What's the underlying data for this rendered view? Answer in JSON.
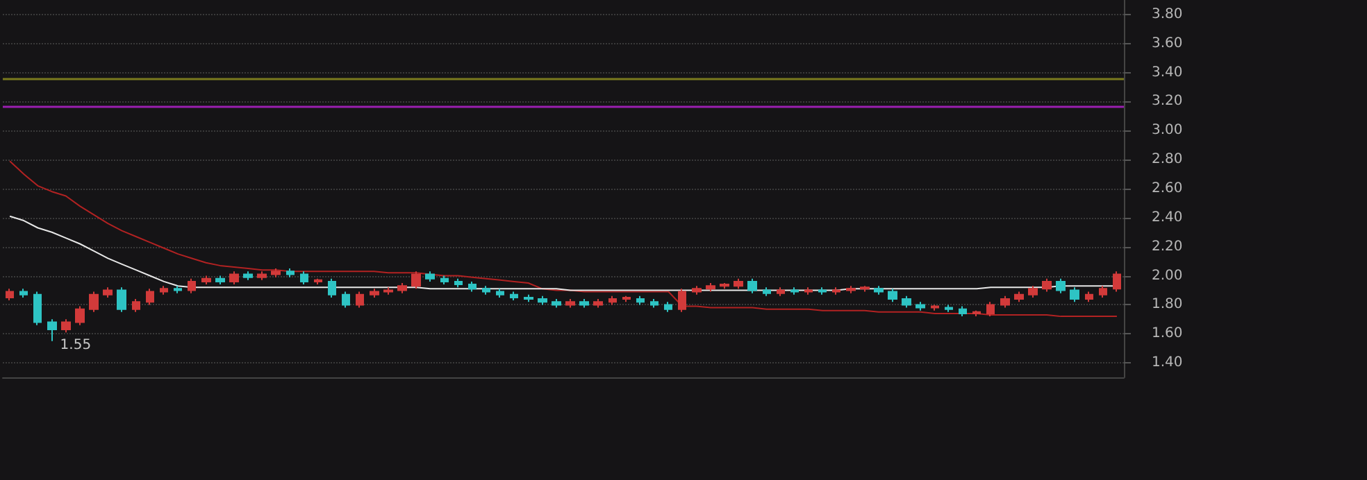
{
  "chart_data": {
    "type": "candlestick",
    "categories": [
      null,
      null,
      null,
      null,
      null,
      null,
      null,
      null,
      null,
      null,
      null,
      null,
      null,
      null,
      null,
      null,
      null,
      null,
      null,
      null,
      null,
      null,
      null,
      null,
      null,
      null,
      null,
      null,
      null,
      null,
      null,
      null,
      null,
      null,
      null,
      null,
      null,
      null,
      null,
      null,
      null,
      null,
      null,
      null,
      null,
      null,
      null,
      null,
      null,
      null,
      null,
      null,
      null,
      null,
      null,
      null,
      null,
      null,
      null,
      null,
      null,
      null,
      null,
      null,
      null,
      null,
      null,
      null,
      null,
      null,
      null,
      null,
      null,
      null,
      null,
      null,
      null,
      null,
      null,
      null
    ],
    "ohlc": [
      [
        1.85,
        1.91,
        1.83,
        1.89
      ],
      [
        1.89,
        1.91,
        1.85,
        1.87
      ],
      [
        1.87,
        1.89,
        1.66,
        1.68
      ],
      [
        1.68,
        1.7,
        1.55,
        1.63
      ],
      [
        1.63,
        1.7,
        1.61,
        1.68
      ],
      [
        1.68,
        1.79,
        1.66,
        1.77
      ],
      [
        1.77,
        1.89,
        1.75,
        1.87
      ],
      [
        1.87,
        1.92,
        1.85,
        1.9
      ],
      [
        1.9,
        1.92,
        1.75,
        1.77
      ],
      [
        1.77,
        1.84,
        1.75,
        1.82
      ],
      [
        1.82,
        1.91,
        1.8,
        1.89
      ],
      [
        1.89,
        1.93,
        1.87,
        1.91
      ],
      [
        1.91,
        1.93,
        1.88,
        1.9
      ],
      [
        1.9,
        1.98,
        1.88,
        1.96
      ],
      [
        1.96,
        2.0,
        1.94,
        1.98
      ],
      [
        1.98,
        2.0,
        1.94,
        1.96
      ],
      [
        1.96,
        2.03,
        1.94,
        2.01
      ],
      [
        2.01,
        2.03,
        1.97,
        1.99
      ],
      [
        1.99,
        2.03,
        1.97,
        2.01
      ],
      [
        2.01,
        2.05,
        1.99,
        2.03
      ],
      [
        2.03,
        2.05,
        1.99,
        2.01
      ],
      [
        2.01,
        2.03,
        1.94,
        1.96
      ],
      [
        1.96,
        1.98,
        1.94,
        1.97
      ],
      [
        1.96,
        1.98,
        1.85,
        1.87
      ],
      [
        1.87,
        1.89,
        1.78,
        1.8
      ],
      [
        1.8,
        1.89,
        1.78,
        1.87
      ],
      [
        1.87,
        1.91,
        1.85,
        1.89
      ],
      [
        1.89,
        1.92,
        1.87,
        1.9
      ],
      [
        1.9,
        1.95,
        1.88,
        1.93
      ],
      [
        1.93,
        2.03,
        1.91,
        2.01
      ],
      [
        2.01,
        2.03,
        1.96,
        1.98
      ],
      [
        1.98,
        2.0,
        1.94,
        1.96
      ],
      [
        1.96,
        1.98,
        1.92,
        1.94
      ],
      [
        1.94,
        1.96,
        1.89,
        1.91
      ],
      [
        1.91,
        1.93,
        1.87,
        1.89
      ],
      [
        1.89,
        1.91,
        1.85,
        1.87
      ],
      [
        1.87,
        1.89,
        1.83,
        1.85
      ],
      [
        1.85,
        1.87,
        1.82,
        1.84
      ],
      [
        1.84,
        1.86,
        1.8,
        1.82
      ],
      [
        1.82,
        1.84,
        1.78,
        1.8
      ],
      [
        1.8,
        1.84,
        1.78,
        1.82
      ],
      [
        1.82,
        1.84,
        1.78,
        1.8
      ],
      [
        1.8,
        1.84,
        1.78,
        1.82
      ],
      [
        1.82,
        1.86,
        1.8,
        1.84
      ],
      [
        1.84,
        1.86,
        1.82,
        1.85
      ],
      [
        1.84,
        1.86,
        1.8,
        1.82
      ],
      [
        1.82,
        1.84,
        1.78,
        1.8
      ],
      [
        1.8,
        1.82,
        1.75,
        1.77
      ],
      [
        1.77,
        1.91,
        1.75,
        1.89
      ],
      [
        1.89,
        1.93,
        1.87,
        1.91
      ],
      [
        1.91,
        1.95,
        1.89,
        1.93
      ],
      [
        1.93,
        1.95,
        1.91,
        1.94
      ],
      [
        1.93,
        1.98,
        1.91,
        1.96
      ],
      [
        1.96,
        1.98,
        1.88,
        1.9
      ],
      [
        1.9,
        1.92,
        1.86,
        1.88
      ],
      [
        1.88,
        1.92,
        1.86,
        1.9
      ],
      [
        1.9,
        1.92,
        1.87,
        1.89
      ],
      [
        1.89,
        1.92,
        1.87,
        1.9
      ],
      [
        1.9,
        1.92,
        1.87,
        1.89
      ],
      [
        1.89,
        1.92,
        1.87,
        1.9
      ],
      [
        1.9,
        1.93,
        1.88,
        1.91
      ],
      [
        1.91,
        1.93,
        1.89,
        1.92
      ],
      [
        1.91,
        1.93,
        1.87,
        1.89
      ],
      [
        1.89,
        1.91,
        1.82,
        1.84
      ],
      [
        1.84,
        1.86,
        1.78,
        1.8
      ],
      [
        1.8,
        1.82,
        1.76,
        1.78
      ],
      [
        1.78,
        1.8,
        1.76,
        1.79
      ],
      [
        1.78,
        1.8,
        1.75,
        1.77
      ],
      [
        1.77,
        1.79,
        1.72,
        1.74
      ],
      [
        1.74,
        1.76,
        1.72,
        1.75
      ],
      [
        1.74,
        1.82,
        1.72,
        1.8
      ],
      [
        1.8,
        1.86,
        1.78,
        1.84
      ],
      [
        1.84,
        1.89,
        1.82,
        1.87
      ],
      [
        1.87,
        1.93,
        1.85,
        1.91
      ],
      [
        1.91,
        1.98,
        1.89,
        1.96
      ],
      [
        1.96,
        1.98,
        1.88,
        1.9
      ],
      [
        1.9,
        1.92,
        1.82,
        1.84
      ],
      [
        1.84,
        1.89,
        1.82,
        1.87
      ],
      [
        1.87,
        1.93,
        1.85,
        1.91
      ],
      [
        1.91,
        2.03,
        1.89,
        2.01
      ]
    ],
    "colors": [
      "#d23a3a",
      "#2ec4c4",
      "#2ec4c4",
      "#2ec4c4",
      "#d23a3a",
      "#d23a3a",
      "#d23a3a",
      "#d23a3a",
      "#2ec4c4",
      "#d23a3a",
      "#d23a3a",
      "#d23a3a",
      "#2ec4c4",
      "#d23a3a",
      "#d23a3a",
      "#2ec4c4",
      "#d23a3a",
      "#2ec4c4",
      "#d23a3a",
      "#d23a3a",
      "#2ec4c4",
      "#2ec4c4",
      "#d23a3a",
      "#2ec4c4",
      "#2ec4c4",
      "#d23a3a",
      "#d23a3a",
      "#d23a3a",
      "#d23a3a",
      "#d23a3a",
      "#2ec4c4",
      "#2ec4c4",
      "#2ec4c4",
      "#2ec4c4",
      "#2ec4c4",
      "#2ec4c4",
      "#2ec4c4",
      "#2ec4c4",
      "#2ec4c4",
      "#2ec4c4",
      "#d23a3a",
      "#2ec4c4",
      "#d23a3a",
      "#d23a3a",
      "#d23a3a",
      "#2ec4c4",
      "#2ec4c4",
      "#2ec4c4",
      "#d23a3a",
      "#d23a3a",
      "#d23a3a",
      "#d23a3a",
      "#d23a3a",
      "#2ec4c4",
      "#2ec4c4",
      "#d23a3a",
      "#2ec4c4",
      "#d23a3a",
      "#2ec4c4",
      "#d23a3a",
      "#d23a3a",
      "#d23a3a",
      "#2ec4c4",
      "#2ec4c4",
      "#2ec4c4",
      "#2ec4c4",
      "#d23a3a",
      "#2ec4c4",
      "#2ec4c4",
      "#d23a3a",
      "#d23a3a",
      "#d23a3a",
      "#d23a3a",
      "#d23a3a",
      "#d23a3a",
      "#2ec4c4",
      "#2ec4c4",
      "#d23a3a",
      "#d23a3a",
      "#d23a3a"
    ],
    "series": [
      {
        "type": "line",
        "color": "#b22222",
        "values": [
          2.79,
          2.7,
          2.62,
          2.58,
          2.55,
          2.48,
          2.42,
          2.36,
          2.31,
          2.27,
          2.23,
          2.19,
          2.15,
          2.12,
          2.09,
          2.07,
          2.06,
          2.05,
          2.04,
          2.04,
          2.03,
          2.03,
          2.03,
          2.03,
          2.03,
          2.03,
          2.03,
          2.02,
          2.02,
          2.02,
          2.01,
          2.0,
          2.0,
          1.99,
          1.98,
          1.97,
          1.96,
          1.95,
          1.91,
          1.9,
          1.9,
          1.89,
          1.89,
          1.89,
          1.89,
          1.89,
          1.89,
          1.89,
          1.79,
          1.79,
          1.78,
          1.78,
          1.78,
          1.78,
          1.77,
          1.77,
          1.77,
          1.77,
          1.76,
          1.76,
          1.76,
          1.76,
          1.75,
          1.75,
          1.75,
          1.75,
          1.74,
          1.74,
          1.74,
          1.74,
          1.73,
          1.73,
          1.73,
          1.73,
          1.73,
          1.72,
          1.72,
          1.72,
          1.72,
          1.72
        ]
      },
      {
        "type": "line",
        "color": "#e8e8e8",
        "values": [
          2.41,
          2.38,
          2.33,
          2.3,
          2.26,
          2.22,
          2.17,
          2.12,
          2.08,
          2.04,
          2.0,
          1.96,
          1.93,
          1.92,
          1.92,
          1.92,
          1.92,
          1.92,
          1.92,
          1.92,
          1.92,
          1.92,
          1.92,
          1.92,
          1.92,
          1.92,
          1.92,
          1.92,
          1.92,
          1.92,
          1.91,
          1.91,
          1.91,
          1.91,
          1.91,
          1.91,
          1.91,
          1.91,
          1.91,
          1.91,
          1.9,
          1.9,
          1.9,
          1.9,
          1.9,
          1.9,
          1.9,
          1.9,
          1.9,
          1.9,
          1.9,
          1.9,
          1.9,
          1.9,
          1.9,
          1.9,
          1.9,
          1.9,
          1.9,
          1.9,
          1.91,
          1.91,
          1.91,
          1.91,
          1.91,
          1.91,
          1.91,
          1.91,
          1.91,
          1.91,
          1.92,
          1.92,
          1.92,
          1.92,
          1.92,
          1.93,
          1.93,
          1.93,
          1.93,
          1.93
        ]
      }
    ],
    "ylim": [
      1.3,
      3.9
    ],
    "yticks": [
      {
        "value": 1.4,
        "label": "1.40"
      },
      {
        "value": 1.6,
        "label": "1.60"
      },
      {
        "value": 1.8,
        "label": "1.80"
      },
      {
        "value": 2.0,
        "label": "2.00"
      },
      {
        "value": 2.2,
        "label": "2.20"
      },
      {
        "value": 2.4,
        "label": "2.40"
      },
      {
        "value": 2.6,
        "label": "2.60"
      },
      {
        "value": 2.8,
        "label": "2.80"
      },
      {
        "value": 3.0,
        "label": "3.00"
      },
      {
        "value": 3.2,
        "label": "3.20"
      },
      {
        "value": 3.4,
        "label": "3.40"
      },
      {
        "value": 3.6,
        "label": "3.60"
      },
      {
        "value": 3.8,
        "label": "3.80"
      }
    ],
    "ref_lines": [
      {
        "axis": "y",
        "value": 3.36,
        "color": "#7a7a1e"
      },
      {
        "axis": "y",
        "value": 3.17,
        "color": "#9a1fb0"
      }
    ],
    "annotations": [
      "1.55"
    ],
    "grid": "y"
  }
}
